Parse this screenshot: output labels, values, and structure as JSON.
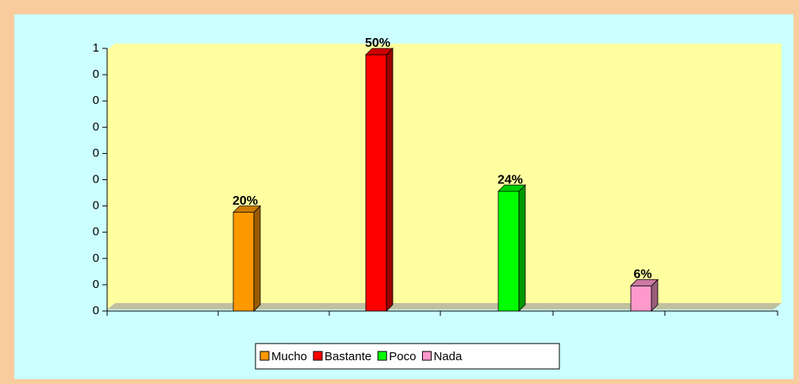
{
  "chart_data": {
    "type": "bar",
    "series": [
      {
        "name": "Mucho",
        "color": "#ff9900",
        "values": [
          0.2
        ],
        "value_labels": [
          "20%"
        ]
      },
      {
        "name": "Bastante",
        "color": "#ff0000",
        "values": [
          0.5
        ],
        "value_labels": [
          "50%"
        ]
      },
      {
        "name": "Poco",
        "color": "#00ff00",
        "values": [
          0.24
        ],
        "value_labels": [
          "24%"
        ]
      },
      {
        "name": "Nada",
        "color": "#ff99cc",
        "values": [
          0.06
        ],
        "value_labels": [
          "6%"
        ]
      }
    ],
    "ylim": [
      0,
      0.5
    ],
    "yticks": [
      {
        "value": 0,
        "label": "0"
      },
      {
        "value": 0.05,
        "label": "0"
      },
      {
        "value": 0.1,
        "label": "0"
      },
      {
        "value": 0.15,
        "label": "0"
      },
      {
        "value": 0.2,
        "label": "0"
      },
      {
        "value": 0.25,
        "label": "0"
      },
      {
        "value": 0.3,
        "label": "0"
      },
      {
        "value": 0.35,
        "label": "0"
      },
      {
        "value": 0.4,
        "label": "0"
      },
      {
        "value": 0.45,
        "label": "0"
      },
      {
        "value": 0.5,
        "label": "1"
      }
    ],
    "legend": "bottom"
  }
}
